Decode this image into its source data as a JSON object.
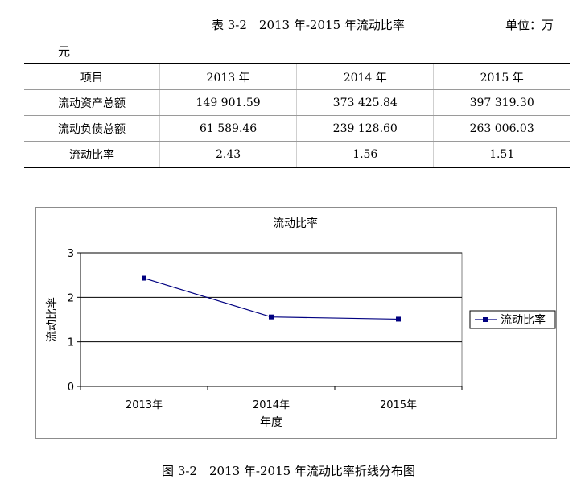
{
  "document": {
    "table_caption": "表 3-2　2013 年-2015 年流动比率",
    "unit_main": "单位：万",
    "unit_tail": "元",
    "figure_caption": "图 3-2　2013 年-2015 年流动比率折线分布图"
  },
  "table": {
    "headers": [
      "项目",
      "2013 年",
      "2014 年",
      "2015 年"
    ],
    "rows": [
      {
        "label": "流动资产总额",
        "values": [
          "149 901.59",
          "373 425.84",
          "397 319.30"
        ]
      },
      {
        "label": "流动负债总额",
        "values": [
          "61 589.46",
          "239 128.60",
          "263 006.03"
        ]
      },
      {
        "label": "流动比率",
        "values": [
          "2.43",
          "1.56",
          "1.51"
        ]
      }
    ]
  },
  "chart_data": {
    "type": "line",
    "title": "流动比率",
    "xlabel": "年度",
    "ylabel": "流动比率",
    "categories": [
      "2013年",
      "2014年",
      "2015年"
    ],
    "yticks": [
      "0",
      "1",
      "2",
      "3"
    ],
    "ylim": [
      0,
      3
    ],
    "grid": true,
    "legend_position": "right",
    "series": [
      {
        "name": "流动比率",
        "values": [
          2.43,
          1.56,
          1.51
        ],
        "color": "#000080"
      }
    ]
  }
}
